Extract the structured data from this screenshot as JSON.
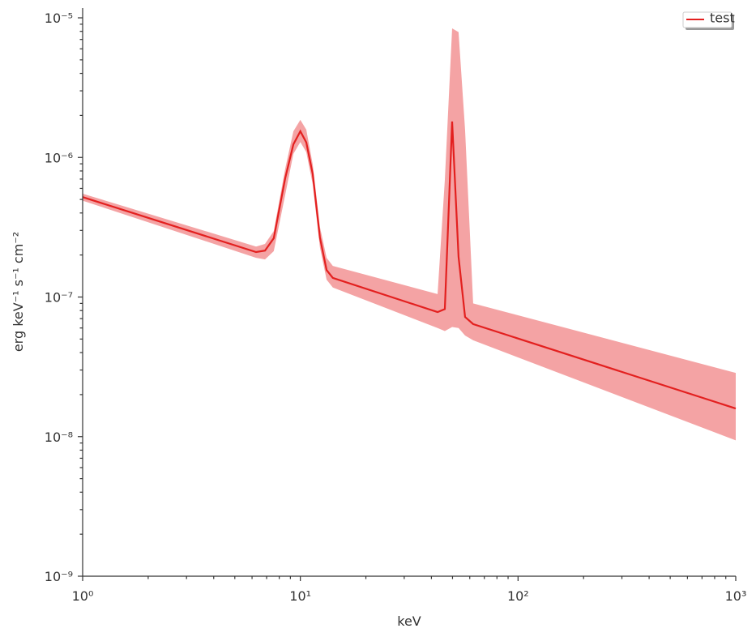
{
  "chart_data": {
    "type": "line",
    "xlabel": "keV",
    "ylabel": "erg keV⁻¹ s⁻¹ cm⁻²",
    "xscale": "log",
    "yscale": "log",
    "minor_ticks": true,
    "legend": "upper right",
    "xlim": [
      1,
      1000
    ],
    "xticks": [
      {
        "value": 1,
        "label": "10⁰"
      },
      {
        "value": 10,
        "label": "10¹"
      },
      {
        "value": 100,
        "label": "10²"
      },
      {
        "value": 1000,
        "label": "10³"
      }
    ],
    "ylim": [
      1e-09,
      1e-05
    ],
    "yticks": [
      {
        "value": 1e-09,
        "label": "10⁻⁹"
      },
      {
        "value": 1e-08,
        "label": "10⁻⁸"
      },
      {
        "value": 1e-07,
        "label": "10⁻⁷"
      },
      {
        "value": 1e-06,
        "label": "10⁻⁶"
      },
      {
        "value": 1e-05,
        "label": "10⁻⁵"
      }
    ],
    "x": [
      1,
      6.26,
      6.88,
      7.55,
      8.52,
      9.29,
      10,
      10.65,
      11.4,
      12.3,
      13.2,
      14.1,
      42.7,
      46.1,
      49.8,
      53.3,
      57.1,
      62.2,
      1000
    ],
    "series": [
      {
        "name": "test",
        "color": "#e3201f",
        "band_color": "#f4a3a4",
        "values": [
          5.2e-07,
          2.1e-07,
          2.15e-07,
          2.64e-07,
          7.1e-07,
          1.24e-06,
          1.54e-06,
          1.28e-06,
          7.6e-07,
          2.67e-07,
          1.56e-07,
          1.37e-07,
          7.8e-08,
          8.2e-08,
          1.81e-06,
          1.94e-07,
          7.2e-08,
          6.4e-08,
          1.59e-08
        ],
        "upper": [
          5.5e-07,
          2.3e-07,
          2.4e-07,
          2.97e-07,
          8.3e-07,
          1.54e-06,
          1.86e-06,
          1.58e-06,
          8.9e-07,
          3.18e-07,
          1.91e-07,
          1.67e-07,
          1.05e-07,
          6.9e-07,
          8.4e-06,
          7.9e-06,
          1.58e-06,
          9e-08,
          2.86e-08
        ],
        "lower": [
          4.9e-07,
          1.91e-07,
          1.86e-07,
          2.13e-07,
          5.4e-07,
          1.06e-06,
          1.29e-06,
          1.09e-06,
          6.4e-07,
          2.27e-07,
          1.33e-07,
          1.17e-07,
          6e-08,
          5.7e-08,
          6.1e-08,
          6e-08,
          5.3e-08,
          4.9e-08,
          9.4e-09
        ]
      }
    ]
  }
}
